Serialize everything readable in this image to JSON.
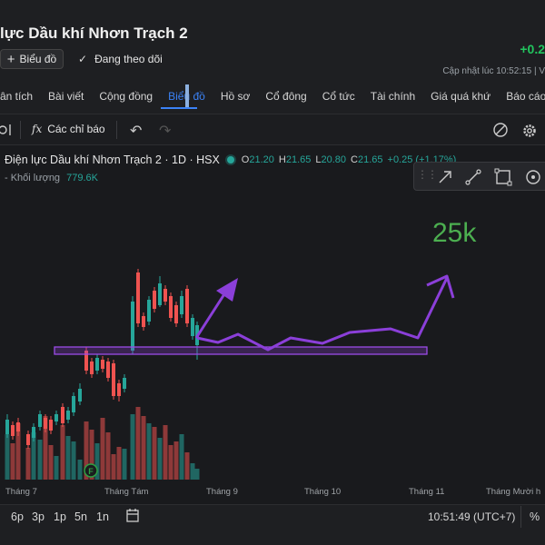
{
  "header": {
    "title": "lực Dầu khí Nhơn Trạch 2",
    "change": "+0.2",
    "updated": "Cập nhật lúc  10:52:15 | V",
    "chart_button": "Biểu đồ",
    "follow_label": "Đang theo dõi"
  },
  "nav": {
    "items": [
      "ân tích",
      "Bài viết",
      "Cộng đồng",
      "Biểu đồ",
      "Hồ sơ",
      "Cổ đông",
      "Cổ tức",
      "Tài chính",
      "Giá quá khứ",
      "Báo cáo"
    ],
    "active": "Biểu đồ"
  },
  "toolbar": {
    "indicators_label": "Các chỉ báo",
    "fx_icon_text": "fx"
  },
  "chart": {
    "symbol": "Điện lực Dầu khí Nhơn Trạch 2 · 1D · HSX",
    "ohlc": {
      "o_label": "O",
      "o": "21.20",
      "h_label": "H",
      "h": "21.65",
      "l_label": "L",
      "l": "20.80",
      "c_label": "C",
      "c": "21.65",
      "chg": "+0.25 (+1.17%)"
    },
    "volume_label": "- Khối lượng",
    "volume_value": "779.6K",
    "annotation": "25k",
    "marker": "F",
    "x_labels": [
      "Tháng 7",
      "Tháng Tám",
      "Tháng 9",
      "Tháng 10",
      "Tháng 11",
      "Tháng Mười h"
    ]
  },
  "timebar": {
    "frames": [
      "6p",
      "3p",
      "1p",
      "5n",
      "1n"
    ],
    "clock": "10:51:49 (UTC+7)",
    "pct": "%"
  },
  "colors": {
    "up": "#26a69a",
    "down": "#ef5350",
    "drawing": "#8b3fd9",
    "annotation": "#4caf50",
    "accent": "#3b82f6"
  }
}
